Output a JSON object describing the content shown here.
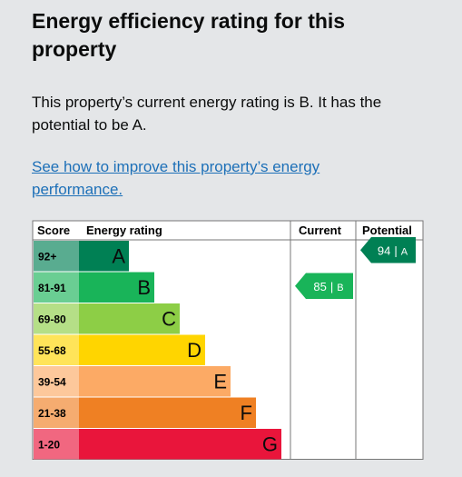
{
  "header": {
    "title": "Energy efficiency rating for this property"
  },
  "intro": "This property’s current energy rating is B. It has the potential to be A.",
  "link": "See how to improve this property’s energy performance.",
  "table": {
    "headers": [
      "Score",
      "Energy rating",
      "Current",
      "Potential"
    ],
    "rows": [
      {
        "score": "92+",
        "band": "A",
        "color": "#008054"
      },
      {
        "score": "81-91",
        "band": "B",
        "color": "#19b459"
      },
      {
        "score": "69-80",
        "band": "C",
        "color": "#8dce46"
      },
      {
        "score": "55-68",
        "band": "D",
        "color": "#ffd500"
      },
      {
        "score": "39-54",
        "band": "E",
        "color": "#fcaa65"
      },
      {
        "score": "21-38",
        "band": "F",
        "color": "#ef8023"
      },
      {
        "score": "1-20",
        "band": "G",
        "color": "#e9153b"
      }
    ],
    "current": {
      "score": 85,
      "divider": "|",
      "band": "B"
    },
    "potential": {
      "score": 94,
      "divider": "|",
      "band": "A"
    }
  }
}
